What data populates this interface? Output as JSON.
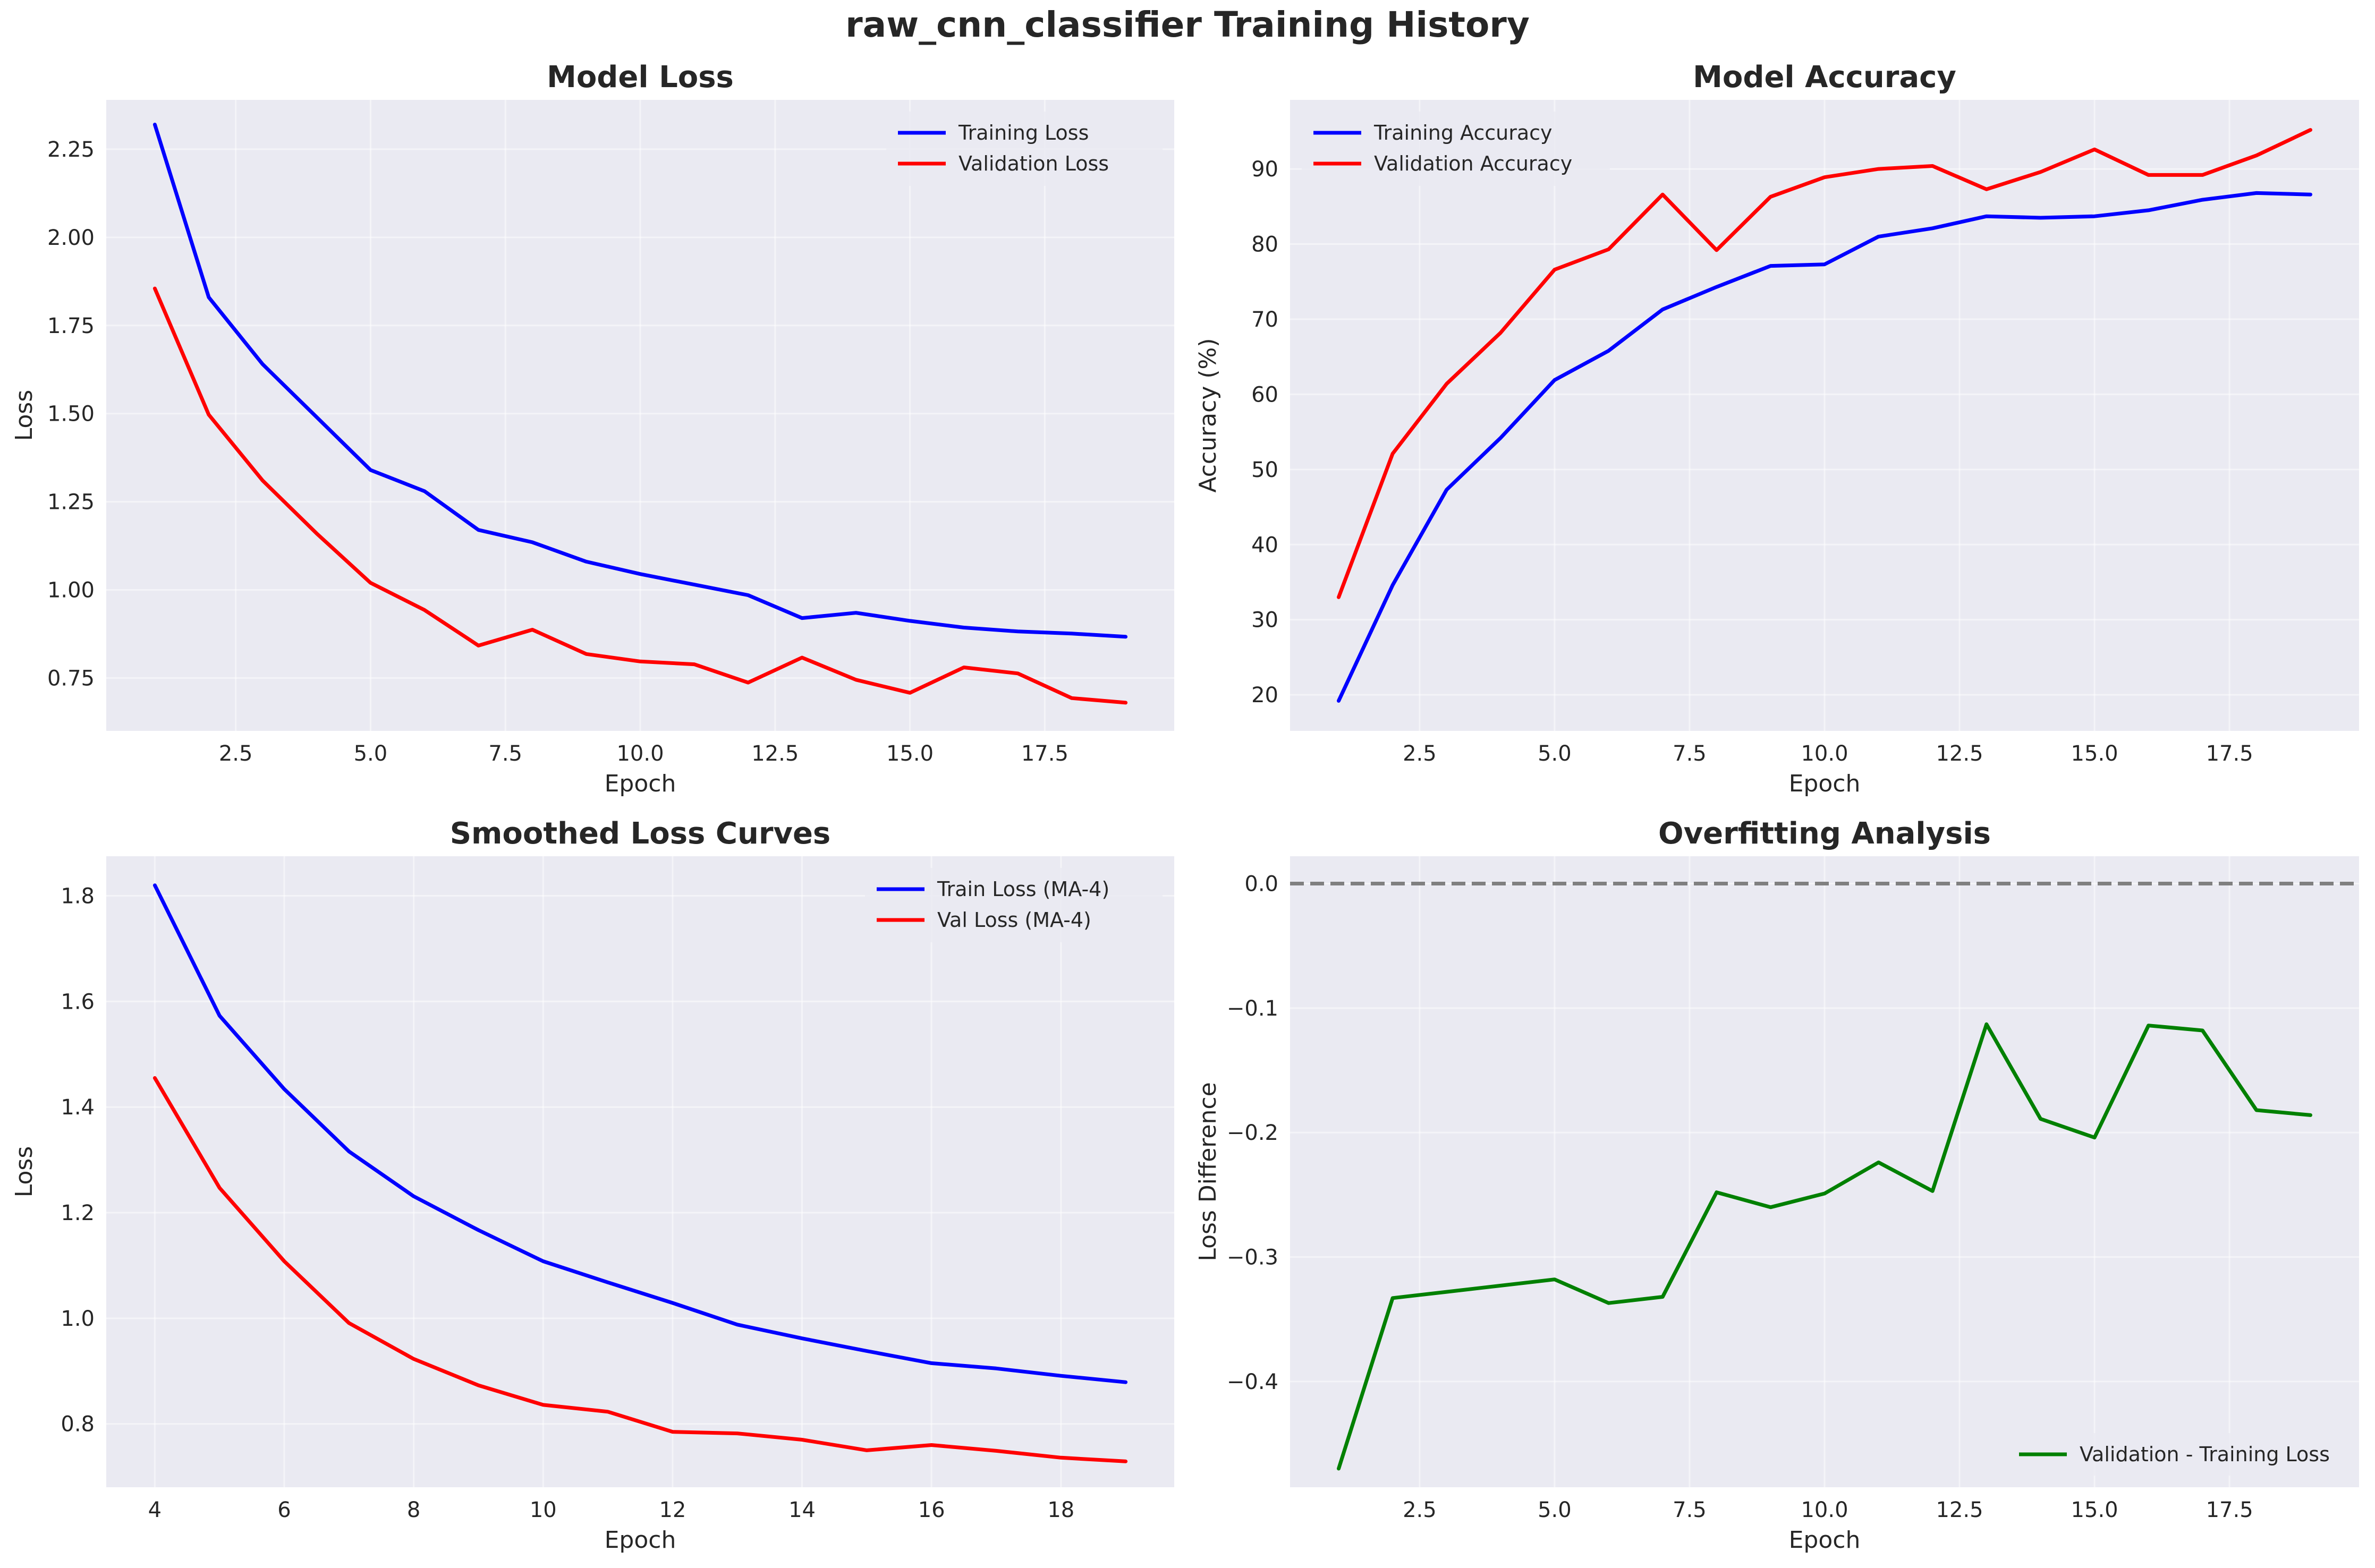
{
  "figure": {
    "title": "raw_cnn_classifier Training History"
  },
  "chart_data": [
    {
      "type": "line",
      "title": "Model Loss",
      "xlabel": "Epoch",
      "ylabel": "Loss",
      "xlim": [
        0.1,
        19.9
      ],
      "ylim": [
        0.6,
        2.39
      ],
      "xticks": [
        2.5,
        5.0,
        7.5,
        10.0,
        12.5,
        15.0,
        17.5
      ],
      "xtick_labels": [
        "2.5",
        "5.0",
        "7.5",
        "10.0",
        "12.5",
        "15.0",
        "17.5"
      ],
      "yticks": [
        0.75,
        1.0,
        1.25,
        1.5,
        1.75,
        2.0,
        2.25
      ],
      "ytick_labels": [
        "0.75",
        "1.00",
        "1.25",
        "1.50",
        "1.75",
        "2.00",
        "2.25"
      ],
      "grid": true,
      "legend": "upper-right",
      "series": [
        {
          "name": "Training Loss",
          "color": "#0000ff",
          "x": [
            1,
            2,
            3,
            4,
            5,
            6,
            7,
            8,
            9,
            10,
            11,
            12,
            13,
            14,
            15,
            16,
            17,
            18,
            19
          ],
          "y": [
            2.32,
            1.83,
            1.64,
            1.49,
            1.34,
            1.28,
            1.17,
            1.135,
            1.08,
            1.045,
            1.015,
            0.985,
            0.92,
            0.935,
            0.912,
            0.893,
            0.882,
            0.876,
            0.867
          ]
        },
        {
          "name": "Validation Loss",
          "color": "#ff0000",
          "x": [
            1,
            2,
            3,
            4,
            5,
            6,
            7,
            8,
            9,
            10,
            11,
            12,
            13,
            14,
            15,
            16,
            17,
            18,
            19
          ],
          "y": [
            1.855,
            1.497,
            1.31,
            1.16,
            1.02,
            0.943,
            0.842,
            0.887,
            0.818,
            0.797,
            0.789,
            0.737,
            0.808,
            0.745,
            0.708,
            0.78,
            0.763,
            0.693,
            0.68
          ]
        }
      ]
    },
    {
      "type": "line",
      "title": "Model Accuracy",
      "xlabel": "Epoch",
      "ylabel": "Accuracy (%)",
      "xlim": [
        0.1,
        19.9
      ],
      "ylim": [
        15.2,
        99.2
      ],
      "xticks": [
        2.5,
        5.0,
        7.5,
        10.0,
        12.5,
        15.0,
        17.5
      ],
      "xtick_labels": [
        "2.5",
        "5.0",
        "7.5",
        "10.0",
        "12.5",
        "15.0",
        "17.5"
      ],
      "yticks": [
        20,
        30,
        40,
        50,
        60,
        70,
        80,
        90
      ],
      "ytick_labels": [
        "20",
        "30",
        "40",
        "50",
        "60",
        "70",
        "80",
        "90"
      ],
      "grid": true,
      "legend": "upper-left",
      "series": [
        {
          "name": "Training Accuracy",
          "color": "#0000ff",
          "x": [
            1,
            2,
            3,
            4,
            5,
            6,
            7,
            8,
            9,
            10,
            11,
            12,
            13,
            14,
            15,
            16,
            17,
            18,
            19
          ],
          "y": [
            19.2,
            34.6,
            47.3,
            54.2,
            61.9,
            65.8,
            71.3,
            74.3,
            77.1,
            77.3,
            81.0,
            82.1,
            83.7,
            83.5,
            83.7,
            84.5,
            85.9,
            86.8,
            86.6
          ]
        },
        {
          "name": "Validation Accuracy",
          "color": "#ff0000",
          "x": [
            1,
            2,
            3,
            4,
            5,
            6,
            7,
            8,
            9,
            10,
            11,
            12,
            13,
            14,
            15,
            16,
            17,
            18,
            19
          ],
          "y": [
            33.0,
            52.1,
            61.4,
            68.2,
            76.6,
            79.3,
            86.6,
            79.2,
            86.3,
            88.9,
            90.0,
            90.4,
            87.3,
            89.6,
            92.6,
            89.2,
            89.2,
            91.8,
            95.2
          ]
        }
      ]
    },
    {
      "type": "line",
      "title": "Smoothed Loss Curves",
      "xlabel": "Epoch",
      "ylabel": "Loss",
      "xlim": [
        3.25,
        19.75
      ],
      "ylim": [
        0.68,
        1.875
      ],
      "xticks": [
        4,
        6,
        8,
        10,
        12,
        14,
        16,
        18
      ],
      "xtick_labels": [
        "4",
        "6",
        "8",
        "10",
        "12",
        "14",
        "16",
        "18"
      ],
      "yticks": [
        0.8,
        1.0,
        1.2,
        1.4,
        1.6,
        1.8
      ],
      "ytick_labels": [
        "0.8",
        "1.0",
        "1.2",
        "1.4",
        "1.6",
        "1.8"
      ],
      "grid": true,
      "legend": "upper-right",
      "series": [
        {
          "name": "Train Loss (MA-4)",
          "color": "#0000ff",
          "x": [
            4,
            5,
            6,
            7,
            8,
            9,
            10,
            11,
            12,
            13,
            14,
            15,
            16,
            17,
            18,
            19
          ],
          "y": [
            1.82,
            1.573,
            1.434,
            1.316,
            1.231,
            1.167,
            1.108,
            1.068,
            1.029,
            0.988,
            0.962,
            0.938,
            0.915,
            0.905,
            0.891,
            0.879
          ]
        },
        {
          "name": "Val Loss (MA-4)",
          "color": "#ff0000",
          "x": [
            4,
            5,
            6,
            7,
            8,
            9,
            10,
            11,
            12,
            13,
            14,
            15,
            16,
            17,
            18,
            19
          ],
          "y": [
            1.455,
            1.247,
            1.108,
            0.991,
            0.923,
            0.873,
            0.836,
            0.823,
            0.785,
            0.782,
            0.77,
            0.75,
            0.76,
            0.749,
            0.736,
            0.729
          ]
        }
      ]
    },
    {
      "type": "line",
      "title": "Overfitting Analysis",
      "xlabel": "Epoch",
      "ylabel": "Loss Difference",
      "xlim": [
        0.1,
        19.9
      ],
      "ylim": [
        -0.485,
        0.022
      ],
      "xticks": [
        2.5,
        5.0,
        7.5,
        10.0,
        12.5,
        15.0,
        17.5
      ],
      "xtick_labels": [
        "2.5",
        "5.0",
        "7.5",
        "10.0",
        "12.5",
        "15.0",
        "17.5"
      ],
      "yticks": [
        -0.4,
        -0.3,
        -0.2,
        -0.1,
        0.0
      ],
      "ytick_labels": [
        "−0.4",
        "−0.3",
        "−0.2",
        "−0.1",
        "0.0"
      ],
      "grid": true,
      "legend": "lower-right",
      "reference_line": {
        "y": 0.0,
        "style": "dashed",
        "color": "#808080"
      },
      "series": [
        {
          "name": "Validation - Training Loss",
          "color": "#008000",
          "x": [
            1,
            2,
            3,
            4,
            5,
            6,
            7,
            8,
            9,
            10,
            11,
            12,
            13,
            14,
            15,
            16,
            17,
            18,
            19
          ],
          "y": [
            -0.47,
            -0.333,
            -0.328,
            -0.323,
            -0.318,
            -0.337,
            -0.332,
            -0.248,
            -0.26,
            -0.249,
            -0.224,
            -0.247,
            -0.113,
            -0.189,
            -0.204,
            -0.114,
            -0.118,
            -0.182,
            -0.186
          ]
        }
      ]
    }
  ]
}
